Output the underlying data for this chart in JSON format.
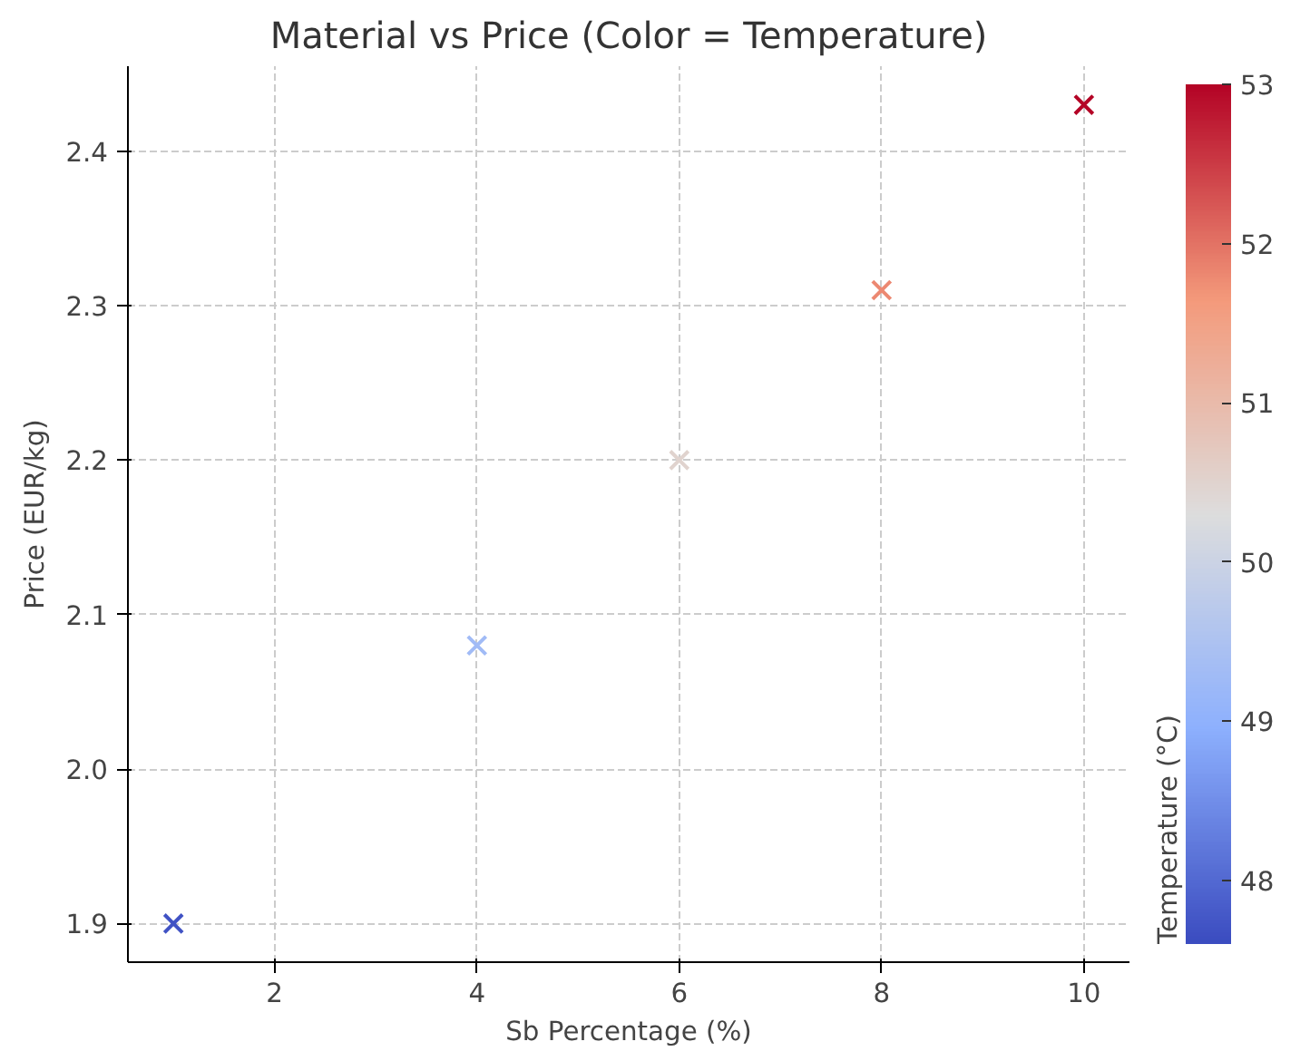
{
  "chart_data": {
    "type": "scatter",
    "title": "Material vs Price (Color = Temperature)",
    "xlabel": "Sb Percentage (%)",
    "ylabel": "Price (EUR/kg)",
    "clabel": "Temperature (°C)",
    "x": [
      1,
      4,
      6,
      8,
      10
    ],
    "values": [
      1.9,
      2.08,
      2.2,
      2.31,
      2.43
    ],
    "cvalues": [
      47.7,
      49.3,
      50.5,
      51.8,
      53.0
    ],
    "clim": [
      47.6,
      53.0
    ],
    "cticks": [
      48,
      49,
      50,
      51,
      52,
      53
    ],
    "xlim": [
      0.55,
      10.45
    ],
    "xticks": [
      2,
      4,
      6,
      8,
      10
    ],
    "ylim": [
      1.875,
      2.455
    ],
    "yticks": [
      1.9,
      {
        "value": 2,
        "label": "2.0"
      },
      2.1,
      2.2,
      2.3,
      2.4
    ],
    "grid": true,
    "marker": "cross"
  }
}
